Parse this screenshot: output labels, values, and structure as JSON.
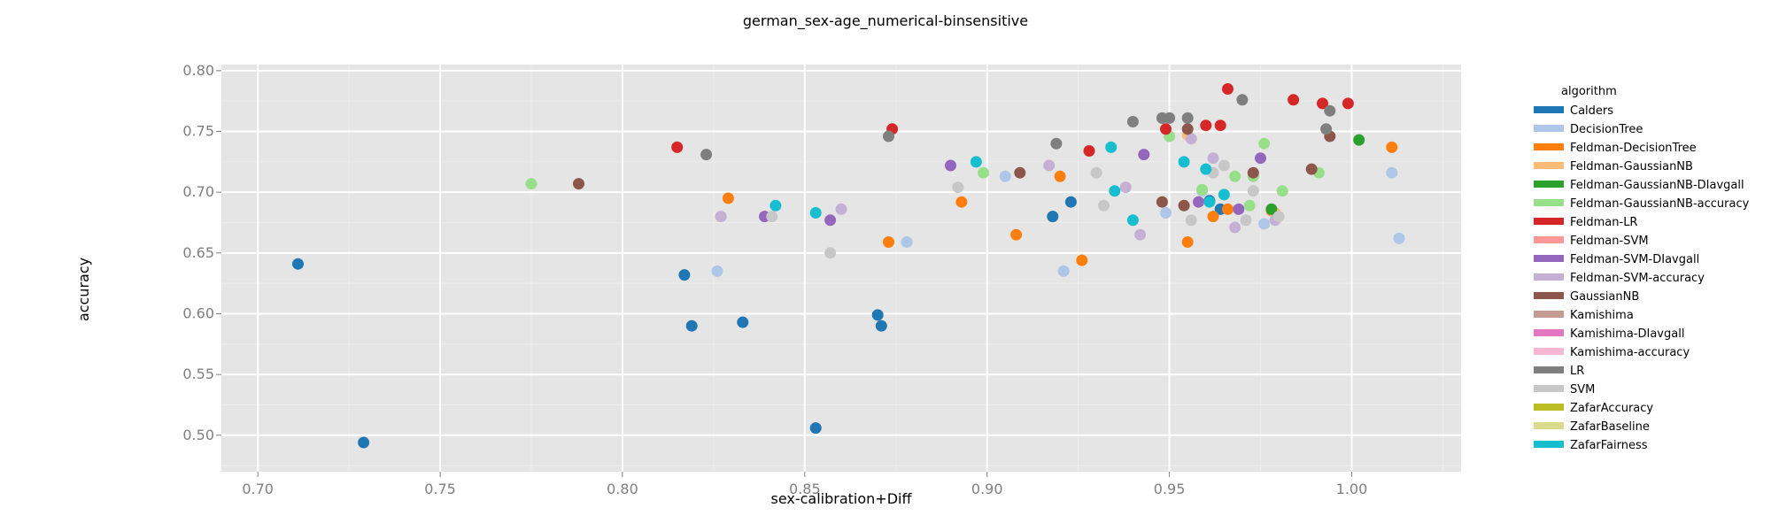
{
  "chart_data": {
    "type": "scatter",
    "title": "german_sex-age_numerical-binsensitive",
    "xlabel": "sex-calibration+Diff",
    "ylabel": "accuracy",
    "xlim": [
      0.69,
      1.03
    ],
    "ylim": [
      0.47,
      0.805
    ],
    "x_ticks": [
      "0.70",
      "0.75",
      "0.80",
      "0.85",
      "0.90",
      "0.95",
      "1.00"
    ],
    "y_ticks": [
      "0.80",
      "0.75",
      "0.70",
      "0.65",
      "0.60",
      "0.55",
      "0.50"
    ],
    "grid": true,
    "legend_title": "algorithm",
    "legend_position": "right",
    "series": [
      {
        "name": "Calders",
        "color": "#1f77b4",
        "points": [
          [
            0.711,
            0.641
          ],
          [
            0.729,
            0.494
          ],
          [
            0.817,
            0.632
          ],
          [
            0.819,
            0.59
          ],
          [
            0.833,
            0.593
          ],
          [
            0.853,
            0.506
          ],
          [
            0.87,
            0.599
          ],
          [
            0.871,
            0.59
          ],
          [
            0.918,
            0.68
          ],
          [
            0.923,
            0.692
          ],
          [
            0.964,
            0.686
          ],
          [
            0.961,
            0.693
          ]
        ]
      },
      {
        "name": "DecisionTree",
        "color": "#aec7e8",
        "points": [
          [
            0.826,
            0.635
          ],
          [
            0.878,
            0.659
          ],
          [
            0.905,
            0.713
          ],
          [
            0.921,
            0.635
          ],
          [
            0.949,
            0.683
          ],
          [
            0.976,
            0.674
          ],
          [
            1.011,
            0.716
          ],
          [
            1.013,
            0.662
          ],
          [
            0.959,
            0.701
          ]
        ]
      },
      {
        "name": "Feldman-DecisionTree",
        "color": "#ff7f0e",
        "points": [
          [
            0.829,
            0.695
          ],
          [
            0.873,
            0.659
          ],
          [
            0.893,
            0.692
          ],
          [
            0.908,
            0.665
          ],
          [
            0.92,
            0.713
          ],
          [
            0.926,
            0.644
          ],
          [
            0.955,
            0.659
          ],
          [
            0.962,
            0.68
          ],
          [
            0.966,
            0.686
          ],
          [
            0.978,
            0.685
          ],
          [
            1.011,
            0.737
          ]
        ]
      },
      {
        "name": "Feldman-GaussianNB",
        "color": "#ffbb78",
        "points": [
          [
            0.955,
            0.747
          ],
          [
            0.979,
            0.683
          ]
        ]
      },
      {
        "name": "Feldman-GaussianNB-DIavgall",
        "color": "#2ca02c",
        "points": [
          [
            0.978,
            0.686
          ],
          [
            1.002,
            0.743
          ]
        ]
      },
      {
        "name": "Feldman-GaussianNB-accuracy",
        "color": "#98df8a",
        "points": [
          [
            0.775,
            0.707
          ],
          [
            0.899,
            0.716
          ],
          [
            0.95,
            0.746
          ],
          [
            0.959,
            0.702
          ],
          [
            0.968,
            0.713
          ],
          [
            0.972,
            0.689
          ],
          [
            0.973,
            0.713
          ],
          [
            0.976,
            0.74
          ],
          [
            0.981,
            0.701
          ],
          [
            0.991,
            0.716
          ]
        ]
      },
      {
        "name": "Feldman-LR",
        "color": "#d62728",
        "points": [
          [
            0.815,
            0.737
          ],
          [
            0.874,
            0.752
          ],
          [
            0.928,
            0.734
          ],
          [
            0.949,
            0.752
          ],
          [
            0.96,
            0.755
          ],
          [
            0.964,
            0.755
          ],
          [
            0.966,
            0.785
          ],
          [
            0.984,
            0.776
          ],
          [
            0.992,
            0.773
          ],
          [
            0.999,
            0.773
          ]
        ]
      },
      {
        "name": "Feldman-SVM",
        "color": "#ff9896",
        "points": []
      },
      {
        "name": "Feldman-SVM-DIavgall",
        "color": "#9467bd",
        "points": [
          [
            0.839,
            0.68
          ],
          [
            0.857,
            0.677
          ],
          [
            0.89,
            0.722
          ],
          [
            0.943,
            0.731
          ],
          [
            0.958,
            0.692
          ],
          [
            0.969,
            0.686
          ],
          [
            0.975,
            0.728
          ]
        ]
      },
      {
        "name": "Feldman-SVM-accuracy",
        "color": "#c5b0d5",
        "points": [
          [
            0.827,
            0.68
          ],
          [
            0.86,
            0.686
          ],
          [
            0.917,
            0.722
          ],
          [
            0.938,
            0.704
          ],
          [
            0.942,
            0.665
          ],
          [
            0.956,
            0.744
          ],
          [
            0.962,
            0.728
          ],
          [
            0.968,
            0.671
          ],
          [
            0.979,
            0.677
          ]
        ]
      },
      {
        "name": "GaussianNB",
        "color": "#8c564b",
        "points": [
          [
            0.788,
            0.707
          ],
          [
            0.909,
            0.716
          ],
          [
            0.948,
            0.692
          ],
          [
            0.954,
            0.689
          ],
          [
            0.955,
            0.752
          ],
          [
            0.973,
            0.716
          ],
          [
            0.989,
            0.719
          ],
          [
            0.994,
            0.746
          ]
        ]
      },
      {
        "name": "Kamishima",
        "color": "#c49c94",
        "points": []
      },
      {
        "name": "Kamishima-DIavgall",
        "color": "#e377c2",
        "points": []
      },
      {
        "name": "Kamishima-accuracy",
        "color": "#f7b6d2",
        "points": []
      },
      {
        "name": "LR",
        "color": "#7f7f7f",
        "points": [
          [
            0.823,
            0.731
          ],
          [
            0.873,
            0.746
          ],
          [
            0.919,
            0.74
          ],
          [
            0.94,
            0.758
          ],
          [
            0.948,
            0.761
          ],
          [
            0.95,
            0.761
          ],
          [
            0.955,
            0.761
          ],
          [
            0.97,
            0.776
          ],
          [
            0.993,
            0.752
          ],
          [
            0.994,
            0.767
          ]
        ]
      },
      {
        "name": "SVM",
        "color": "#c7c7c7",
        "points": [
          [
            0.841,
            0.68
          ],
          [
            0.857,
            0.65
          ],
          [
            0.892,
            0.704
          ],
          [
            0.93,
            0.716
          ],
          [
            0.932,
            0.689
          ],
          [
            0.956,
            0.677
          ],
          [
            0.962,
            0.716
          ],
          [
            0.965,
            0.722
          ],
          [
            0.971,
            0.677
          ],
          [
            0.973,
            0.701
          ],
          [
            0.98,
            0.68
          ]
        ]
      },
      {
        "name": "ZafarAccuracy",
        "color": "#bcbd22",
        "points": []
      },
      {
        "name": "ZafarBaseline",
        "color": "#dbdb8d",
        "points": []
      },
      {
        "name": "ZafarFairness",
        "color": "#17becf",
        "points": [
          [
            0.842,
            0.689
          ],
          [
            0.853,
            0.683
          ],
          [
            0.897,
            0.725
          ],
          [
            0.934,
            0.737
          ],
          [
            0.935,
            0.701
          ],
          [
            0.94,
            0.677
          ],
          [
            0.954,
            0.725
          ],
          [
            0.96,
            0.719
          ],
          [
            0.961,
            0.692
          ],
          [
            0.965,
            0.698
          ]
        ]
      }
    ]
  }
}
